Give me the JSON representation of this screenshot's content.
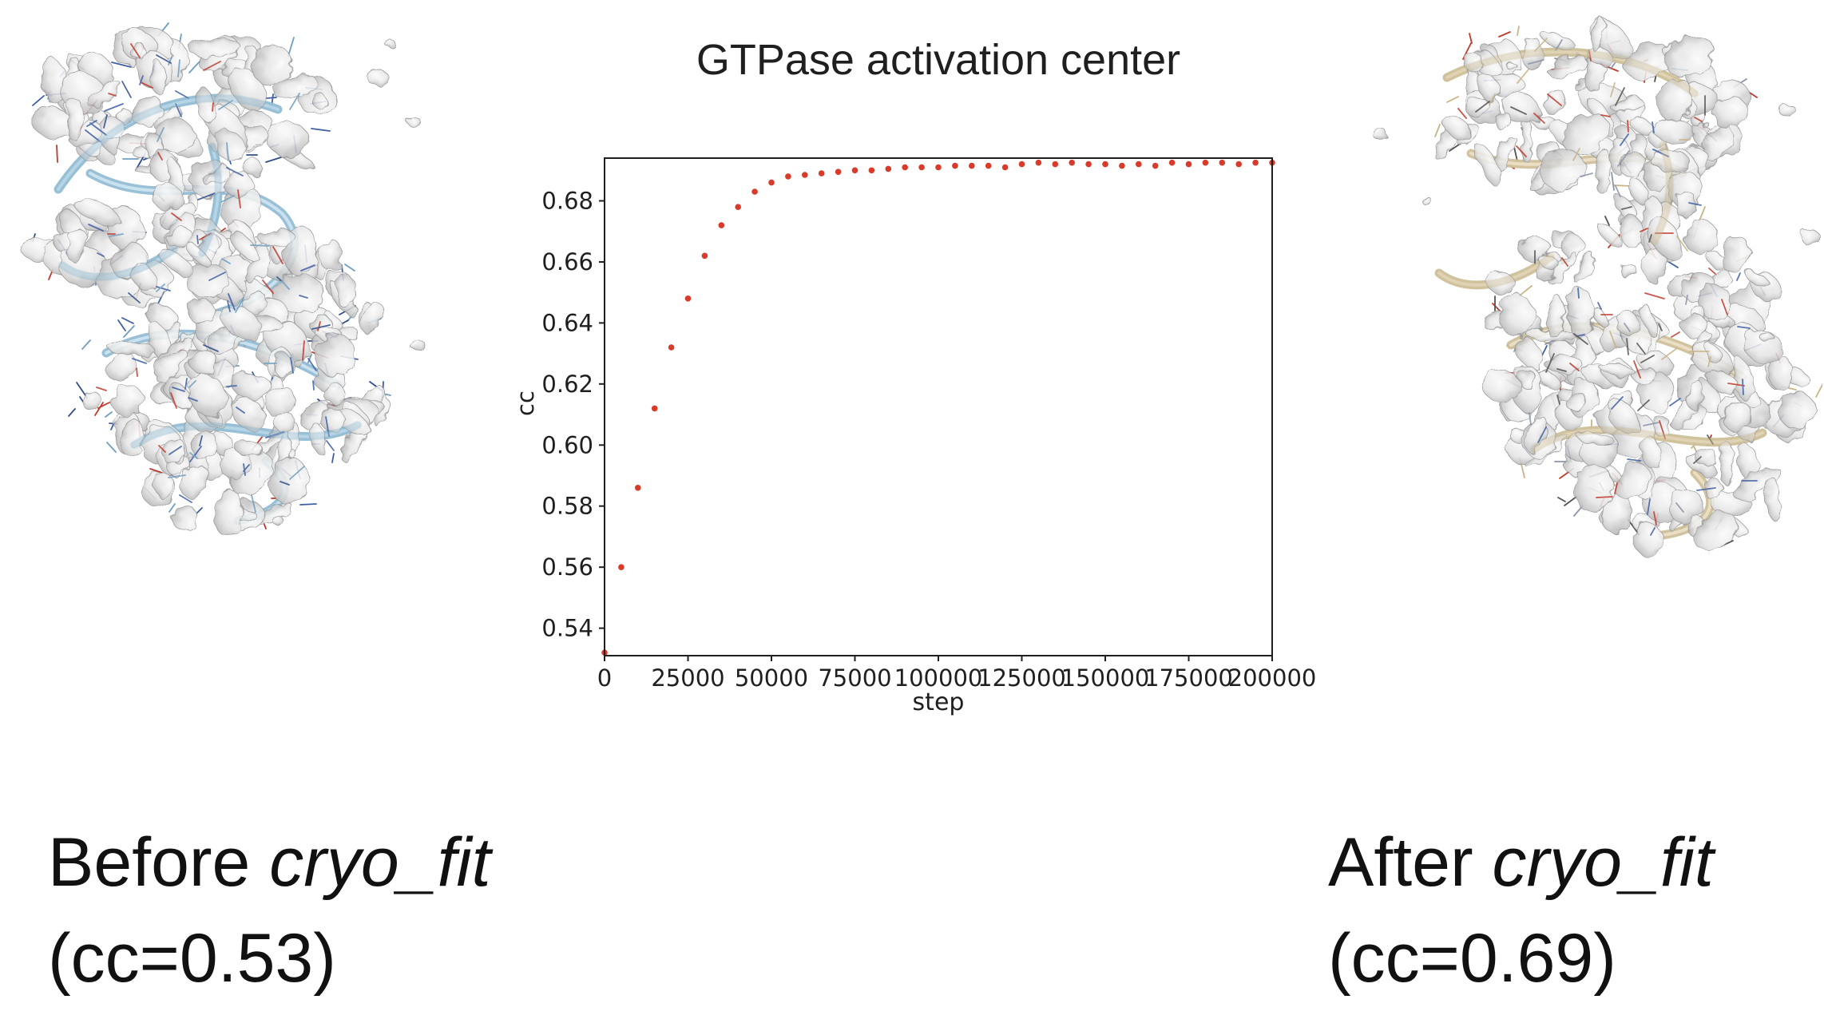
{
  "slide": {
    "captions": {
      "before_line1_normal": "Before ",
      "before_line1_italic": "cryo_fit",
      "before_line2": "(cc=0.53)",
      "after_line1_normal": "After ",
      "after_line1_italic": "cryo_fit",
      "after_line2": "(cc=0.69)"
    }
  },
  "chart_data": {
    "type": "scatter",
    "title": "GTPase activation center",
    "xlabel": "step",
    "ylabel": "cc",
    "xlim": [
      0,
      200000
    ],
    "ylim": [
      0.531,
      0.694
    ],
    "xticks": [
      0,
      25000,
      50000,
      75000,
      100000,
      125000,
      150000,
      175000,
      200000
    ],
    "yticks": [
      0.54,
      0.56,
      0.58,
      0.6,
      0.62,
      0.64,
      0.66,
      0.68
    ],
    "grid": false,
    "legend": null,
    "marker_color": "#d93b2b",
    "x": [
      0,
      5000,
      10000,
      15000,
      20000,
      25000,
      30000,
      35000,
      40000,
      45000,
      50000,
      55000,
      60000,
      65000,
      70000,
      75000,
      80000,
      85000,
      90000,
      95000,
      100000,
      105000,
      110000,
      115000,
      120000,
      125000,
      130000,
      135000,
      140000,
      145000,
      150000,
      155000,
      160000,
      165000,
      170000,
      175000,
      180000,
      185000,
      190000,
      195000,
      200000
    ],
    "y": [
      0.532,
      0.56,
      0.586,
      0.612,
      0.632,
      0.648,
      0.662,
      0.672,
      0.678,
      0.683,
      0.686,
      0.688,
      0.6885,
      0.689,
      0.6895,
      0.69,
      0.69,
      0.6905,
      0.691,
      0.691,
      0.691,
      0.6915,
      0.6915,
      0.6915,
      0.691,
      0.692,
      0.6925,
      0.692,
      0.6925,
      0.692,
      0.692,
      0.6915,
      0.692,
      0.6915,
      0.6925,
      0.692,
      0.6925,
      0.6925,
      0.692,
      0.6925,
      0.6925
    ]
  },
  "colors": {
    "background": "#ffffff",
    "axis": "#1f1f1f",
    "density_light": "#fbfbfb",
    "density_mid": "#e6e6e6",
    "density_dark": "#b2b2b2",
    "density_outline": "#8f8f8f",
    "before_ribbon": "#93bdd4",
    "before_ribbon_highlight": "#cfe6f2",
    "after_ribbon": "#cfc09a",
    "after_ribbon_highlight": "#ece2c8",
    "stick_blue": "#3e5fa6",
    "stick_red": "#bf3a2c"
  }
}
